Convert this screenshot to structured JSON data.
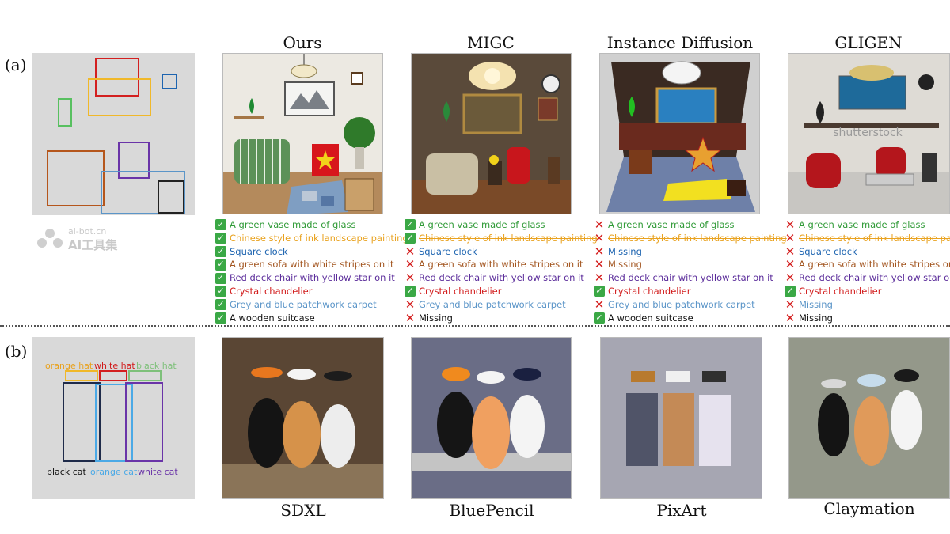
{
  "panel_a": {
    "label": "(a)",
    "columns": [
      "Ours",
      "MIGC",
      "Instance Diffusion",
      "GLIGEN"
    ],
    "captions": {
      "ours": [
        {
          "mark": "ok",
          "text": "A green vase made of glass"
        },
        {
          "mark": "ok",
          "text": "Chinese style of ink landscape painting"
        },
        {
          "mark": "ok",
          "text": "Square clock"
        },
        {
          "mark": "ok",
          "text": "A green sofa with white stripes on it"
        },
        {
          "mark": "ok",
          "text": "Red deck chair with yellow star on it"
        },
        {
          "mark": "ok",
          "text": "Crystal chandelier"
        },
        {
          "mark": "ok",
          "text": "Grey and blue patchwork carpet"
        },
        {
          "mark": "ok",
          "text": "A wooden suitcase"
        }
      ],
      "migc": [
        {
          "mark": "ok",
          "text": "A green vase made of glass"
        },
        {
          "mark": "ok",
          "text": "Chinese style of ink landscape painting"
        },
        {
          "mark": "no",
          "text": "Square clock"
        },
        {
          "mark": "no",
          "text": "A green sofa with white stripes on it"
        },
        {
          "mark": "no",
          "text": "Red deck chair with yellow star on it"
        },
        {
          "mark": "ok",
          "text": "Crystal chandelier"
        },
        {
          "mark": "no",
          "text": "Grey and blue patchwork carpet"
        },
        {
          "mark": "no",
          "text": "Missing"
        }
      ],
      "instance": [
        {
          "mark": "no",
          "text": "A green vase made of glass"
        },
        {
          "mark": "no",
          "text": "Chinese style of ink landscape painting"
        },
        {
          "mark": "no",
          "text": "Missing"
        },
        {
          "mark": "no",
          "text": "Missing"
        },
        {
          "mark": "no",
          "text": "Red deck chair with yellow star on it"
        },
        {
          "mark": "ok",
          "text": "Crystal chandelier"
        },
        {
          "mark": "no",
          "text": "Grey and blue patchwork carpet"
        },
        {
          "mark": "ok",
          "text": "A wooden suitcase"
        }
      ],
      "gligen": [
        {
          "mark": "no",
          "text": "A green vase made of glass"
        },
        {
          "mark": "no",
          "text": "Chinese style of ink landscape painting"
        },
        {
          "mark": "no",
          "text": "Square clock"
        },
        {
          "mark": "no",
          "text": "A green sofa with white stripes on it"
        },
        {
          "mark": "no",
          "text": "Red deck chair with yellow star on it"
        },
        {
          "mark": "ok",
          "text": "Crystal chandelier"
        },
        {
          "mark": "no",
          "text": "Missing"
        },
        {
          "mark": "no",
          "text": "Missing"
        }
      ]
    },
    "watermark": {
      "line1": "ai-bot.cn",
      "line2": "AI工具集"
    },
    "gligen_watermark": "shutterstock"
  },
  "panel_b": {
    "label": "(b)",
    "hat_labels": [
      "orange hat",
      "white hat",
      "black hat"
    ],
    "cat_labels": [
      "black cat",
      "orange cat",
      "white cat"
    ],
    "columns": [
      "SDXL",
      "BluePencil",
      "PixArt",
      "Claymation"
    ]
  },
  "colors": {
    "green": "#2f9a36",
    "orange": "#e9a21f",
    "blue": "#1d64b0",
    "brown": "#a2541e",
    "purple": "#5a2b9a",
    "red": "#d11a1a",
    "steel": "#5b95c8",
    "ok": "#3aa845",
    "cross": "#d42020"
  }
}
